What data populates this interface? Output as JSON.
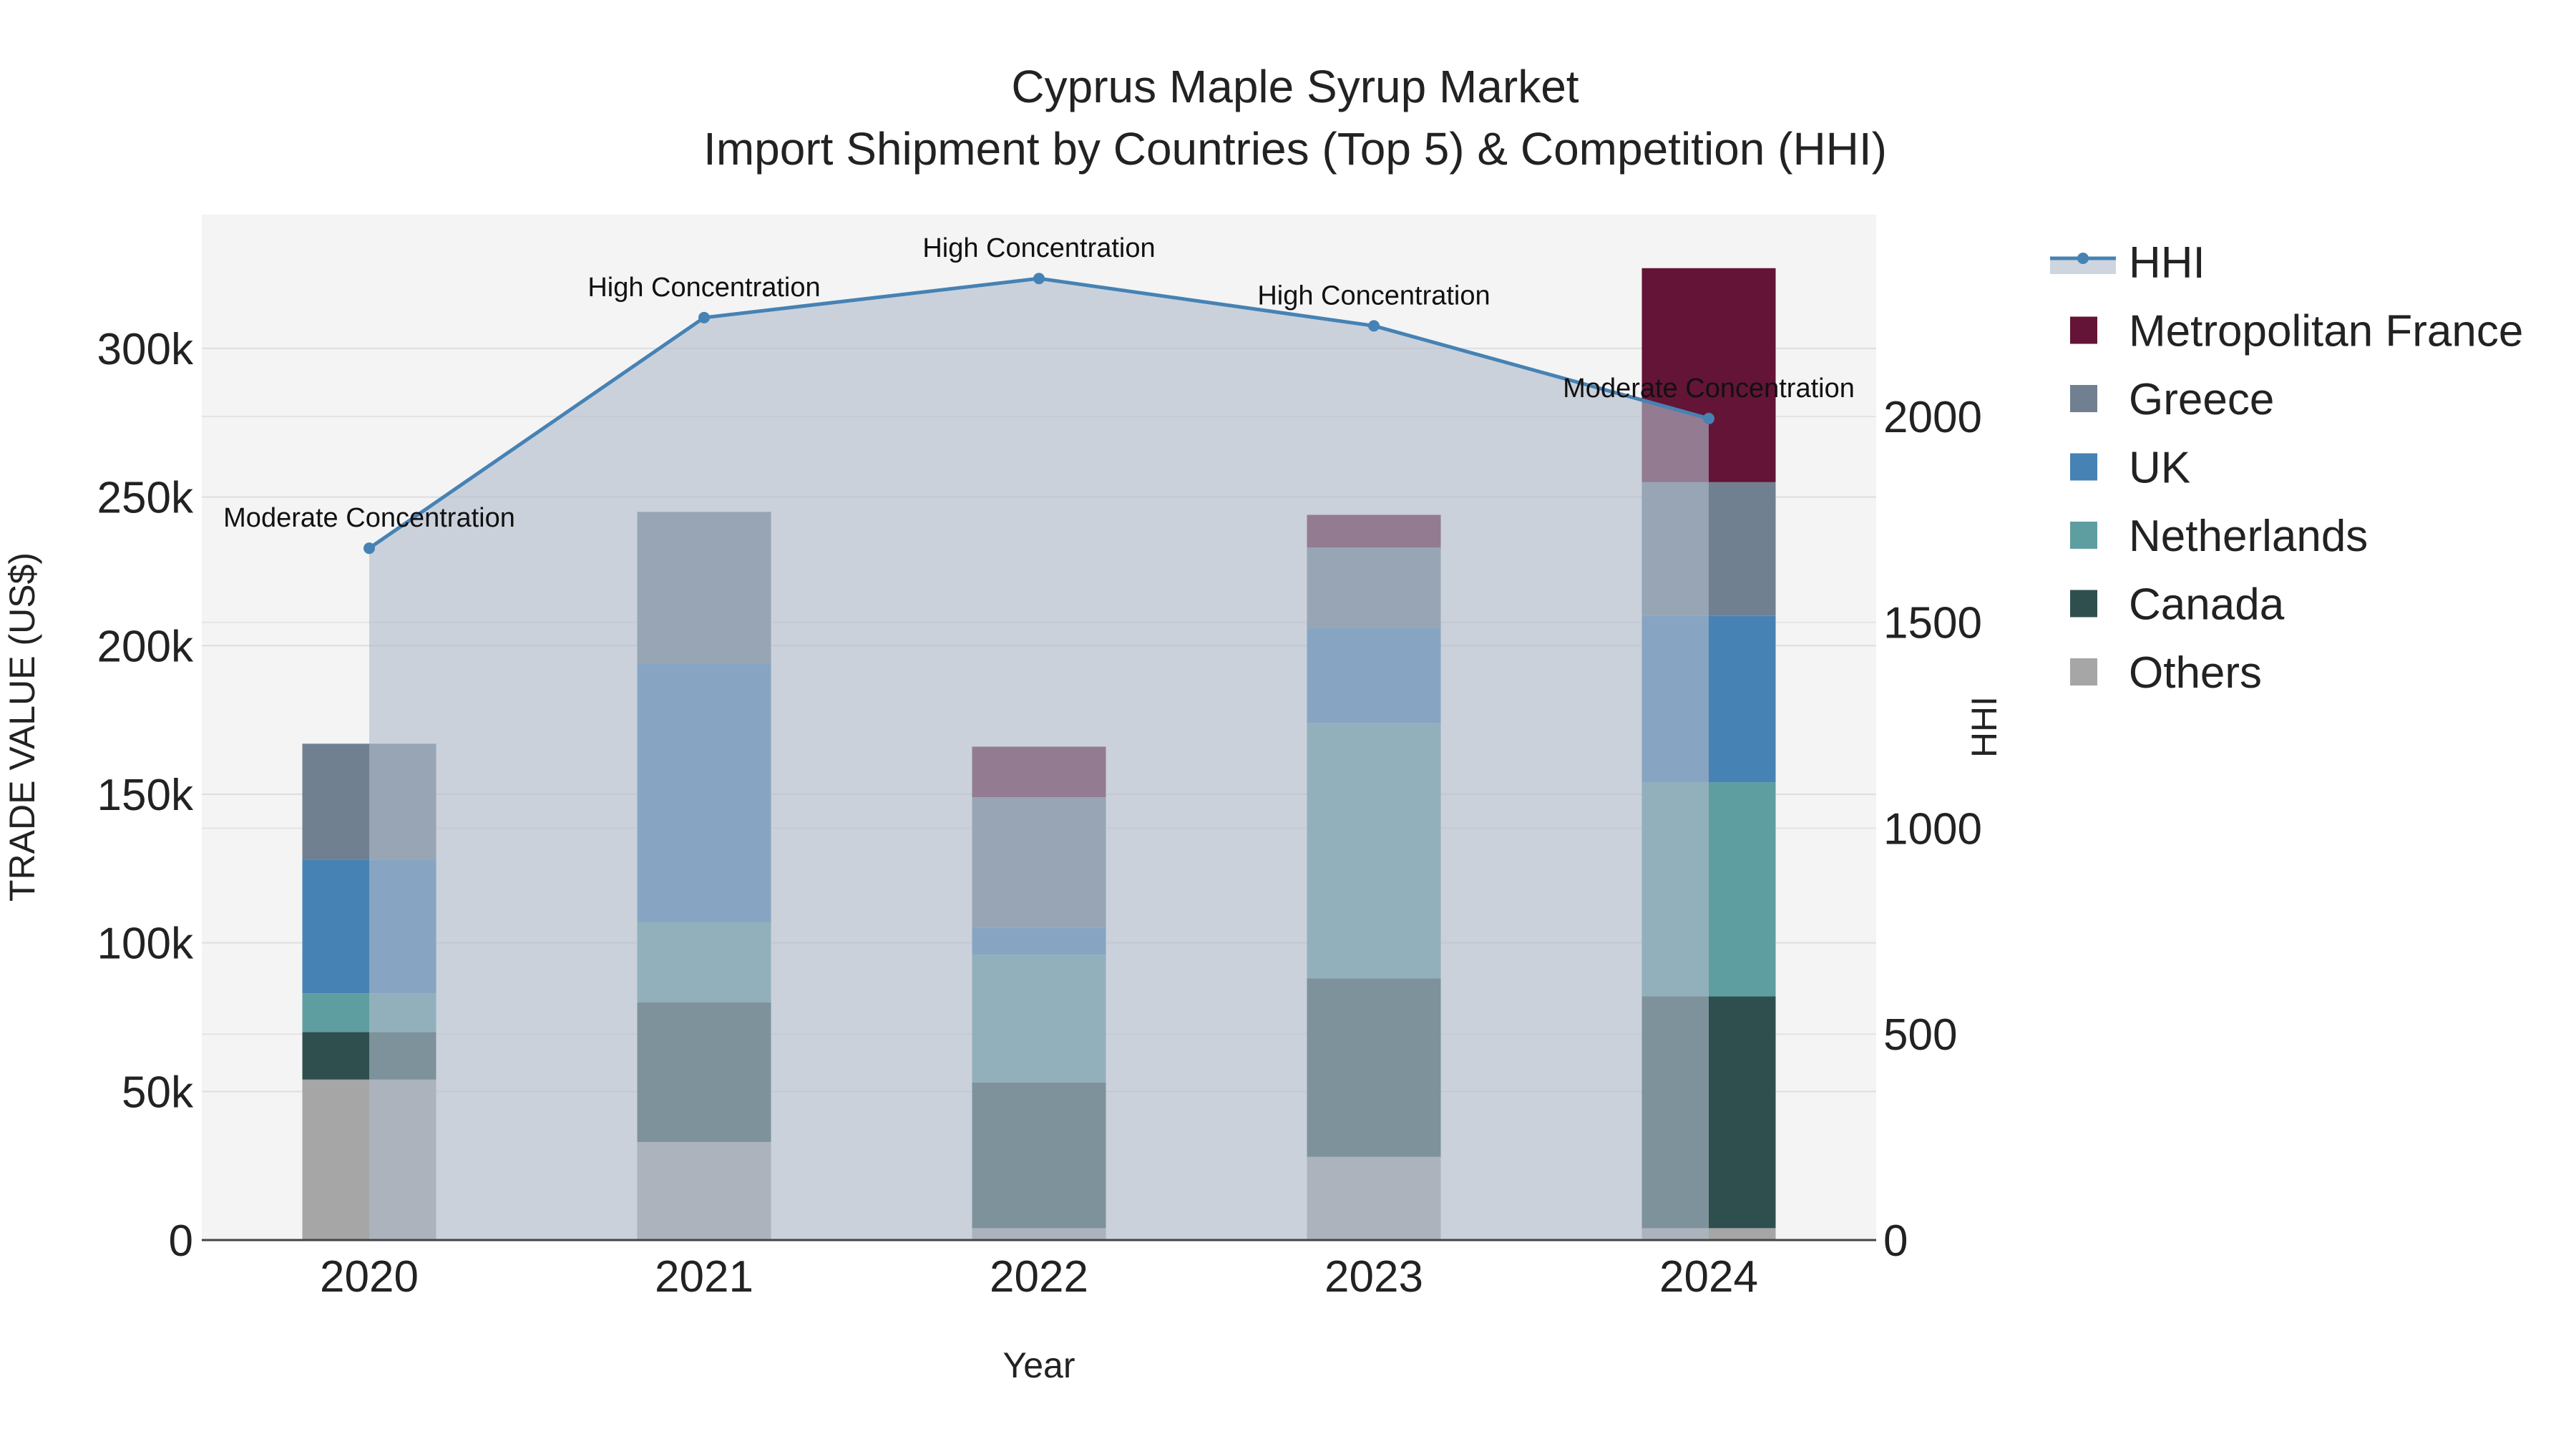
{
  "chart_data": {
    "type": "bar",
    "title": "Cyprus Maple Syrup Market",
    "subtitle": "Import Shipment by Countries (Top 5) & Competition (HHI)",
    "xlabel": "Year",
    "ylabel": "TRADE VALUE (US$)",
    "y2label": "HHI",
    "categories": [
      "2020",
      "2021",
      "2022",
      "2023",
      "2024"
    ],
    "ylim": [
      0,
      345000
    ],
    "y_ticks": [
      0,
      50000,
      100000,
      150000,
      200000,
      250000,
      300000
    ],
    "y_tick_labels": [
      "0",
      "50k",
      "100k",
      "150k",
      "200k",
      "250k",
      "300k"
    ],
    "y2lim": [
      0,
      2490
    ],
    "y2_ticks": [
      0,
      500,
      1000,
      1500,
      2000
    ],
    "y2_tick_labels": [
      "0",
      "500",
      "1000",
      "1500",
      "2000"
    ],
    "series": [
      {
        "name": "Others",
        "color": "#a6a6a6",
        "values": [
          54000,
          33000,
          4000,
          28000,
          4000
        ]
      },
      {
        "name": "Canada",
        "color": "#2f4f4f",
        "values": [
          16000,
          47000,
          49000,
          60000,
          78000
        ]
      },
      {
        "name": "Netherlands",
        "color": "#5f9ea0",
        "values": [
          13000,
          27000,
          43000,
          86000,
          72000
        ]
      },
      {
        "name": "UK",
        "color": "#4682b4",
        "values": [
          45000,
          87000,
          9000,
          32000,
          56000
        ]
      },
      {
        "name": "Greece",
        "color": "#708090",
        "values": [
          39000,
          51000,
          44000,
          27000,
          45000
        ]
      },
      {
        "name": "Metropolitan France",
        "color": "#641436",
        "values": [
          0,
          0,
          17000,
          11000,
          72000
        ]
      }
    ],
    "hhi": {
      "name": "HHI",
      "color": "#4682b4",
      "values": [
        1680,
        2240,
        2335,
        2220,
        1995
      ],
      "labels": [
        "Moderate Concentration",
        "High Concentration",
        "High Concentration",
        "High Concentration",
        "Moderate Concentration"
      ]
    },
    "legend": [
      "HHI",
      "Metropolitan France",
      "Greece",
      "UK",
      "Netherlands",
      "Canada",
      "Others"
    ],
    "legend_position": "top-right",
    "grid": true
  }
}
